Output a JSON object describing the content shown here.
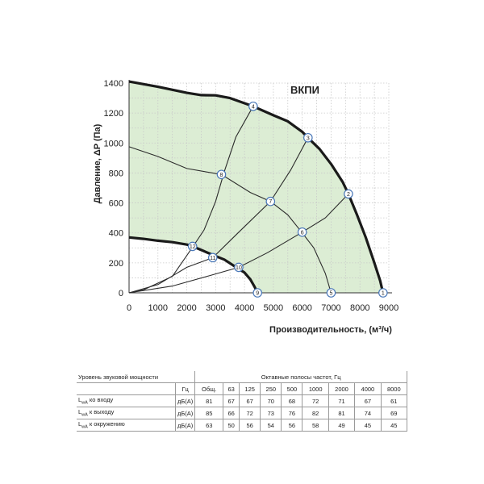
{
  "chart_data": {
    "type": "line",
    "title": "ВКПИ",
    "xlabel": "Производительность, (м³/ч)",
    "ylabel": "Давление, ΔP (Па)",
    "xlim": [
      0,
      9000
    ],
    "ylim": [
      0,
      1400
    ],
    "xticks": [
      "0",
      "1000",
      "2000",
      "3000",
      "4000",
      "5000",
      "6000",
      "7000",
      "8000",
      "9000"
    ],
    "yticks": [
      "0",
      "200",
      "400",
      "600",
      "800",
      "1000",
      "1200",
      "1400"
    ],
    "grid": true,
    "fill_color": "#dcedd4",
    "series": [
      {
        "kind": "fan-max",
        "points": [
          [
            0,
            1410
          ],
          [
            1000,
            1375
          ],
          [
            2000,
            1335
          ],
          [
            2500,
            1320
          ],
          [
            3000,
            1318
          ],
          [
            3500,
            1300
          ],
          [
            4300,
            1245
          ],
          [
            5000,
            1185
          ],
          [
            5500,
            1145
          ],
          [
            6000,
            1075
          ],
          [
            6200,
            1035
          ],
          [
            6600,
            960
          ],
          [
            7000,
            860
          ],
          [
            7400,
            740
          ],
          [
            7600,
            660
          ],
          [
            7900,
            520
          ],
          [
            8200,
            370
          ],
          [
            8500,
            200
          ],
          [
            8700,
            80
          ],
          [
            8800,
            0
          ]
        ]
      },
      {
        "kind": "fan-min",
        "points": [
          [
            0,
            370
          ],
          [
            500,
            360
          ],
          [
            1000,
            348
          ],
          [
            1500,
            338
          ],
          [
            2000,
            322
          ],
          [
            2200,
            310
          ],
          [
            2600,
            278
          ],
          [
            3000,
            245
          ],
          [
            3300,
            222
          ],
          [
            3700,
            172
          ],
          [
            4000,
            135
          ],
          [
            4200,
            90
          ],
          [
            4350,
            40
          ],
          [
            4450,
            0
          ]
        ]
      },
      {
        "kind": "system",
        "points": [
          [
            0,
            0
          ],
          [
            500,
            20
          ],
          [
            1500,
            110
          ],
          [
            2200,
            305
          ],
          [
            2600,
            420
          ],
          [
            3000,
            610
          ],
          [
            3300,
            810
          ],
          [
            3700,
            1040
          ],
          [
            4300,
            1245
          ]
        ]
      },
      {
        "kind": "system",
        "points": [
          [
            0,
            0
          ],
          [
            1000,
            55
          ],
          [
            2000,
            170
          ],
          [
            2900,
            235
          ],
          [
            3800,
            405
          ],
          [
            4900,
            610
          ],
          [
            5600,
            820
          ],
          [
            6200,
            1035
          ]
        ]
      },
      {
        "kind": "system",
        "points": [
          [
            0,
            0
          ],
          [
            1500,
            45
          ],
          [
            2800,
            115
          ],
          [
            3800,
            170
          ],
          [
            4800,
            268
          ],
          [
            6000,
            405
          ],
          [
            6800,
            500
          ],
          [
            7600,
            660
          ]
        ]
      },
      {
        "kind": "resistance",
        "points": [
          [
            0,
            975
          ],
          [
            1000,
            910
          ],
          [
            2000,
            830
          ],
          [
            3200,
            790
          ],
          [
            4200,
            670
          ],
          [
            4900,
            610
          ],
          [
            5500,
            520
          ],
          [
            6000,
            400
          ],
          [
            6400,
            300
          ],
          [
            6800,
            130
          ],
          [
            7000,
            0
          ]
        ]
      }
    ],
    "markers": [
      {
        "label": "1",
        "x": 8800,
        "y": 0
      },
      {
        "label": "2",
        "x": 7600,
        "y": 660
      },
      {
        "label": "3",
        "x": 6200,
        "y": 1035
      },
      {
        "label": "4",
        "x": 4300,
        "y": 1245
      },
      {
        "label": "5",
        "x": 7000,
        "y": 0
      },
      {
        "label": "6",
        "x": 6000,
        "y": 405
      },
      {
        "label": "7",
        "x": 4900,
        "y": 610
      },
      {
        "label": "8",
        "x": 3200,
        "y": 790
      },
      {
        "label": "9",
        "x": 4450,
        "y": 0
      },
      {
        "label": "10",
        "x": 3800,
        "y": 170
      },
      {
        "label": "11",
        "x": 2900,
        "y": 235
      },
      {
        "label": "12",
        "x": 2200,
        "y": 310
      }
    ]
  },
  "sound_table": {
    "title": "Уровень звуковой мощности",
    "bands_title": "Октавные полосы частот, Гц",
    "hz_label": "Гц",
    "columns": [
      "Общ.",
      "63",
      "125",
      "250",
      "500",
      "1000",
      "2000",
      "4000",
      "8000"
    ],
    "rows": [
      {
        "label_main": "L",
        "label_sub": "wA",
        "label_rest": " ко входу",
        "unit": "дБ(А)",
        "values": [
          "81",
          "67",
          "67",
          "70",
          "68",
          "72",
          "71",
          "67",
          "61"
        ]
      },
      {
        "label_main": "L",
        "label_sub": "wA",
        "label_rest": " к выходу",
        "unit": "дБ(А)",
        "values": [
          "85",
          "66",
          "72",
          "73",
          "76",
          "82",
          "81",
          "74",
          "69"
        ]
      },
      {
        "label_main": "L",
        "label_sub": "wA",
        "label_rest": " к окружению",
        "unit": "дБ(А)",
        "values": [
          "63",
          "50",
          "56",
          "54",
          "56",
          "58",
          "49",
          "45",
          "45"
        ]
      }
    ]
  }
}
